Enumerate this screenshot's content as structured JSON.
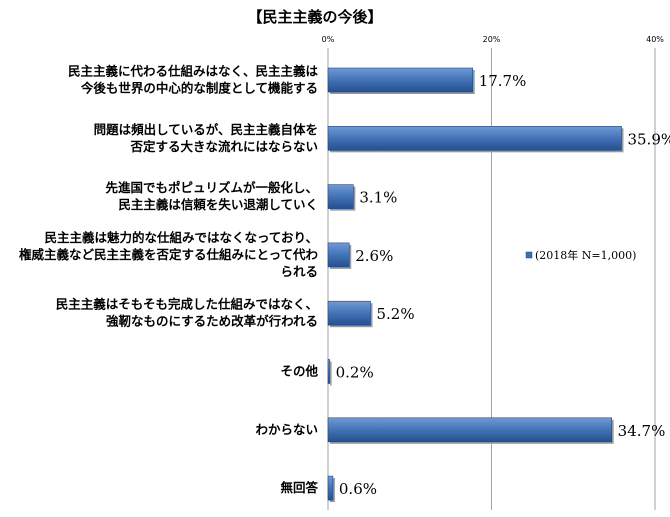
{
  "chart_data": {
    "type": "bar",
    "orientation": "horizontal",
    "title": "【民主主義の今後】",
    "categories": [
      [
        "民主主義に代わる仕組みはなく、民主主義は",
        "今後も世界の中心的な制度として機能する"
      ],
      [
        "問題は頻出しているが、民主主義自体を",
        "否定する大きな流れにはならない"
      ],
      [
        "先進国でもポピュリズムが一般化し、",
        "民主主義は信頼を失い退潮していく"
      ],
      [
        "民主主義は魅力的な仕組みではなくなっており、",
        "権威主義など民主主義を否定する仕組みにとって代わ",
        "られる"
      ],
      [
        "民主主義はそもそも完成した仕組みではなく、",
        "強靭なものにするため改革が行われる"
      ],
      [
        "その他"
      ],
      [
        "わからない"
      ],
      [
        "無回答"
      ]
    ],
    "series": [
      {
        "name": "(2018年 N=1,000)",
        "values": [
          17.7,
          35.9,
          3.1,
          2.6,
          5.2,
          0.2,
          34.7,
          0.6
        ],
        "labels": [
          "17.7%",
          "35.9%",
          "3.1%",
          "2.6%",
          "5.2%",
          "0.2%",
          "34.7%",
          "0.6%"
        ]
      }
    ],
    "xticks": [
      0,
      20,
      40
    ],
    "xtick_labels": [
      "0%",
      "20%",
      "40%"
    ],
    "xlim": [
      0,
      40
    ],
    "grid": "vertical",
    "legend_position": "right",
    "colors": {
      "bar": "#3f6fb3",
      "bar_light": "#6f9ad6",
      "bar_dark": "#264f8c",
      "grid": "#8c8c8c"
    }
  }
}
